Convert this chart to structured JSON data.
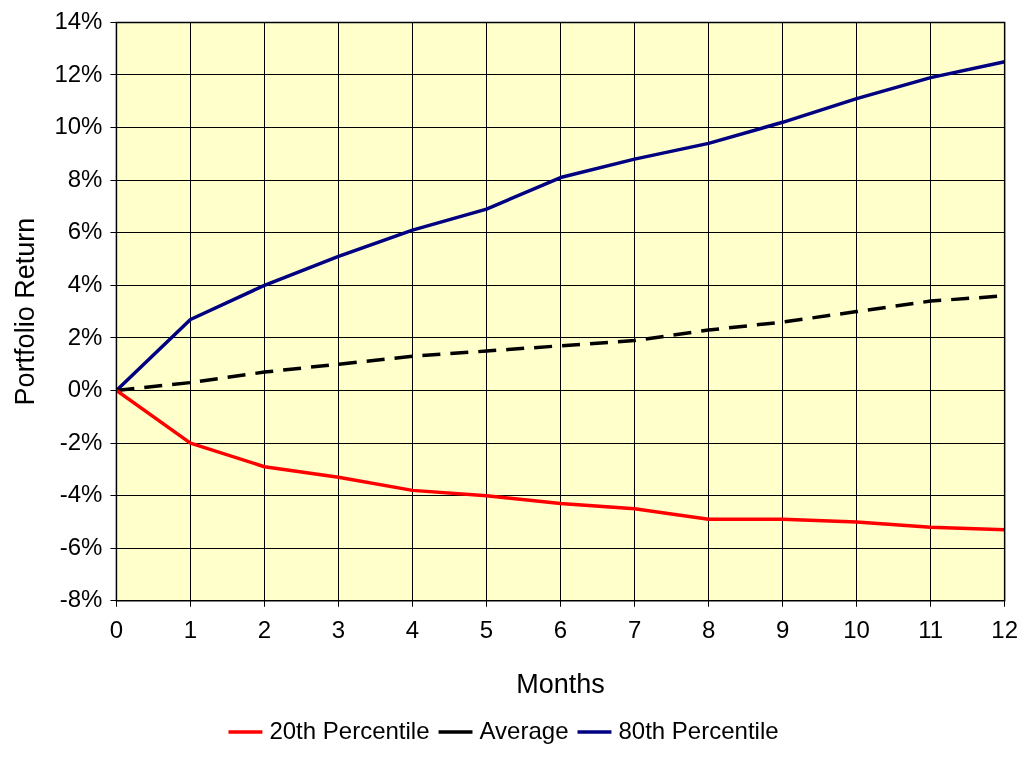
{
  "chart_data": {
    "type": "line",
    "xlabel": "Months",
    "ylabel": "Portfolio Return",
    "x": [
      0,
      1,
      2,
      3,
      4,
      5,
      6,
      7,
      8,
      9,
      10,
      11,
      12
    ],
    "series": [
      {
        "name": "20th Percentile",
        "color": "#ff0000",
        "line_style": "solid",
        "values": [
          0,
          -2.0,
          -2.9,
          -3.3,
          -3.8,
          -4.0,
          -4.3,
          -4.5,
          -4.9,
          -4.9,
          -5.0,
          -5.2,
          -5.3
        ]
      },
      {
        "name": "Average",
        "color": "#000000",
        "line_style": "dashed",
        "values": [
          0,
          0.3,
          0.7,
          1.0,
          1.3,
          1.5,
          1.7,
          1.9,
          2.3,
          2.6,
          3.0,
          3.4,
          3.6
        ]
      },
      {
        "name": "80th Percentile",
        "color": "#000080",
        "line_style": "solid",
        "values": [
          0,
          2.7,
          4.0,
          5.1,
          6.1,
          6.9,
          8.1,
          8.8,
          9.4,
          10.2,
          11.1,
          11.9,
          12.5
        ]
      }
    ],
    "xlim": [
      0,
      12
    ],
    "xticks": [
      0,
      1,
      2,
      3,
      4,
      5,
      6,
      7,
      8,
      9,
      10,
      11,
      12
    ],
    "ylim": [
      -8,
      14
    ],
    "yticks": [
      {
        "value": -8,
        "label": "-8%"
      },
      {
        "value": -6,
        "label": "-6%"
      },
      {
        "value": -4,
        "label": "-4%"
      },
      {
        "value": -2,
        "label": "-2%"
      },
      {
        "value": 0,
        "label": "0%"
      },
      {
        "value": 2,
        "label": "2%"
      },
      {
        "value": 4,
        "label": "4%"
      },
      {
        "value": 6,
        "label": "6%"
      },
      {
        "value": 8,
        "label": "8%"
      },
      {
        "value": 10,
        "label": "10%"
      },
      {
        "value": 12,
        "label": "12%"
      },
      {
        "value": 14,
        "label": "14%"
      }
    ],
    "grid": true,
    "legend": "bottom",
    "marker": "none"
  }
}
